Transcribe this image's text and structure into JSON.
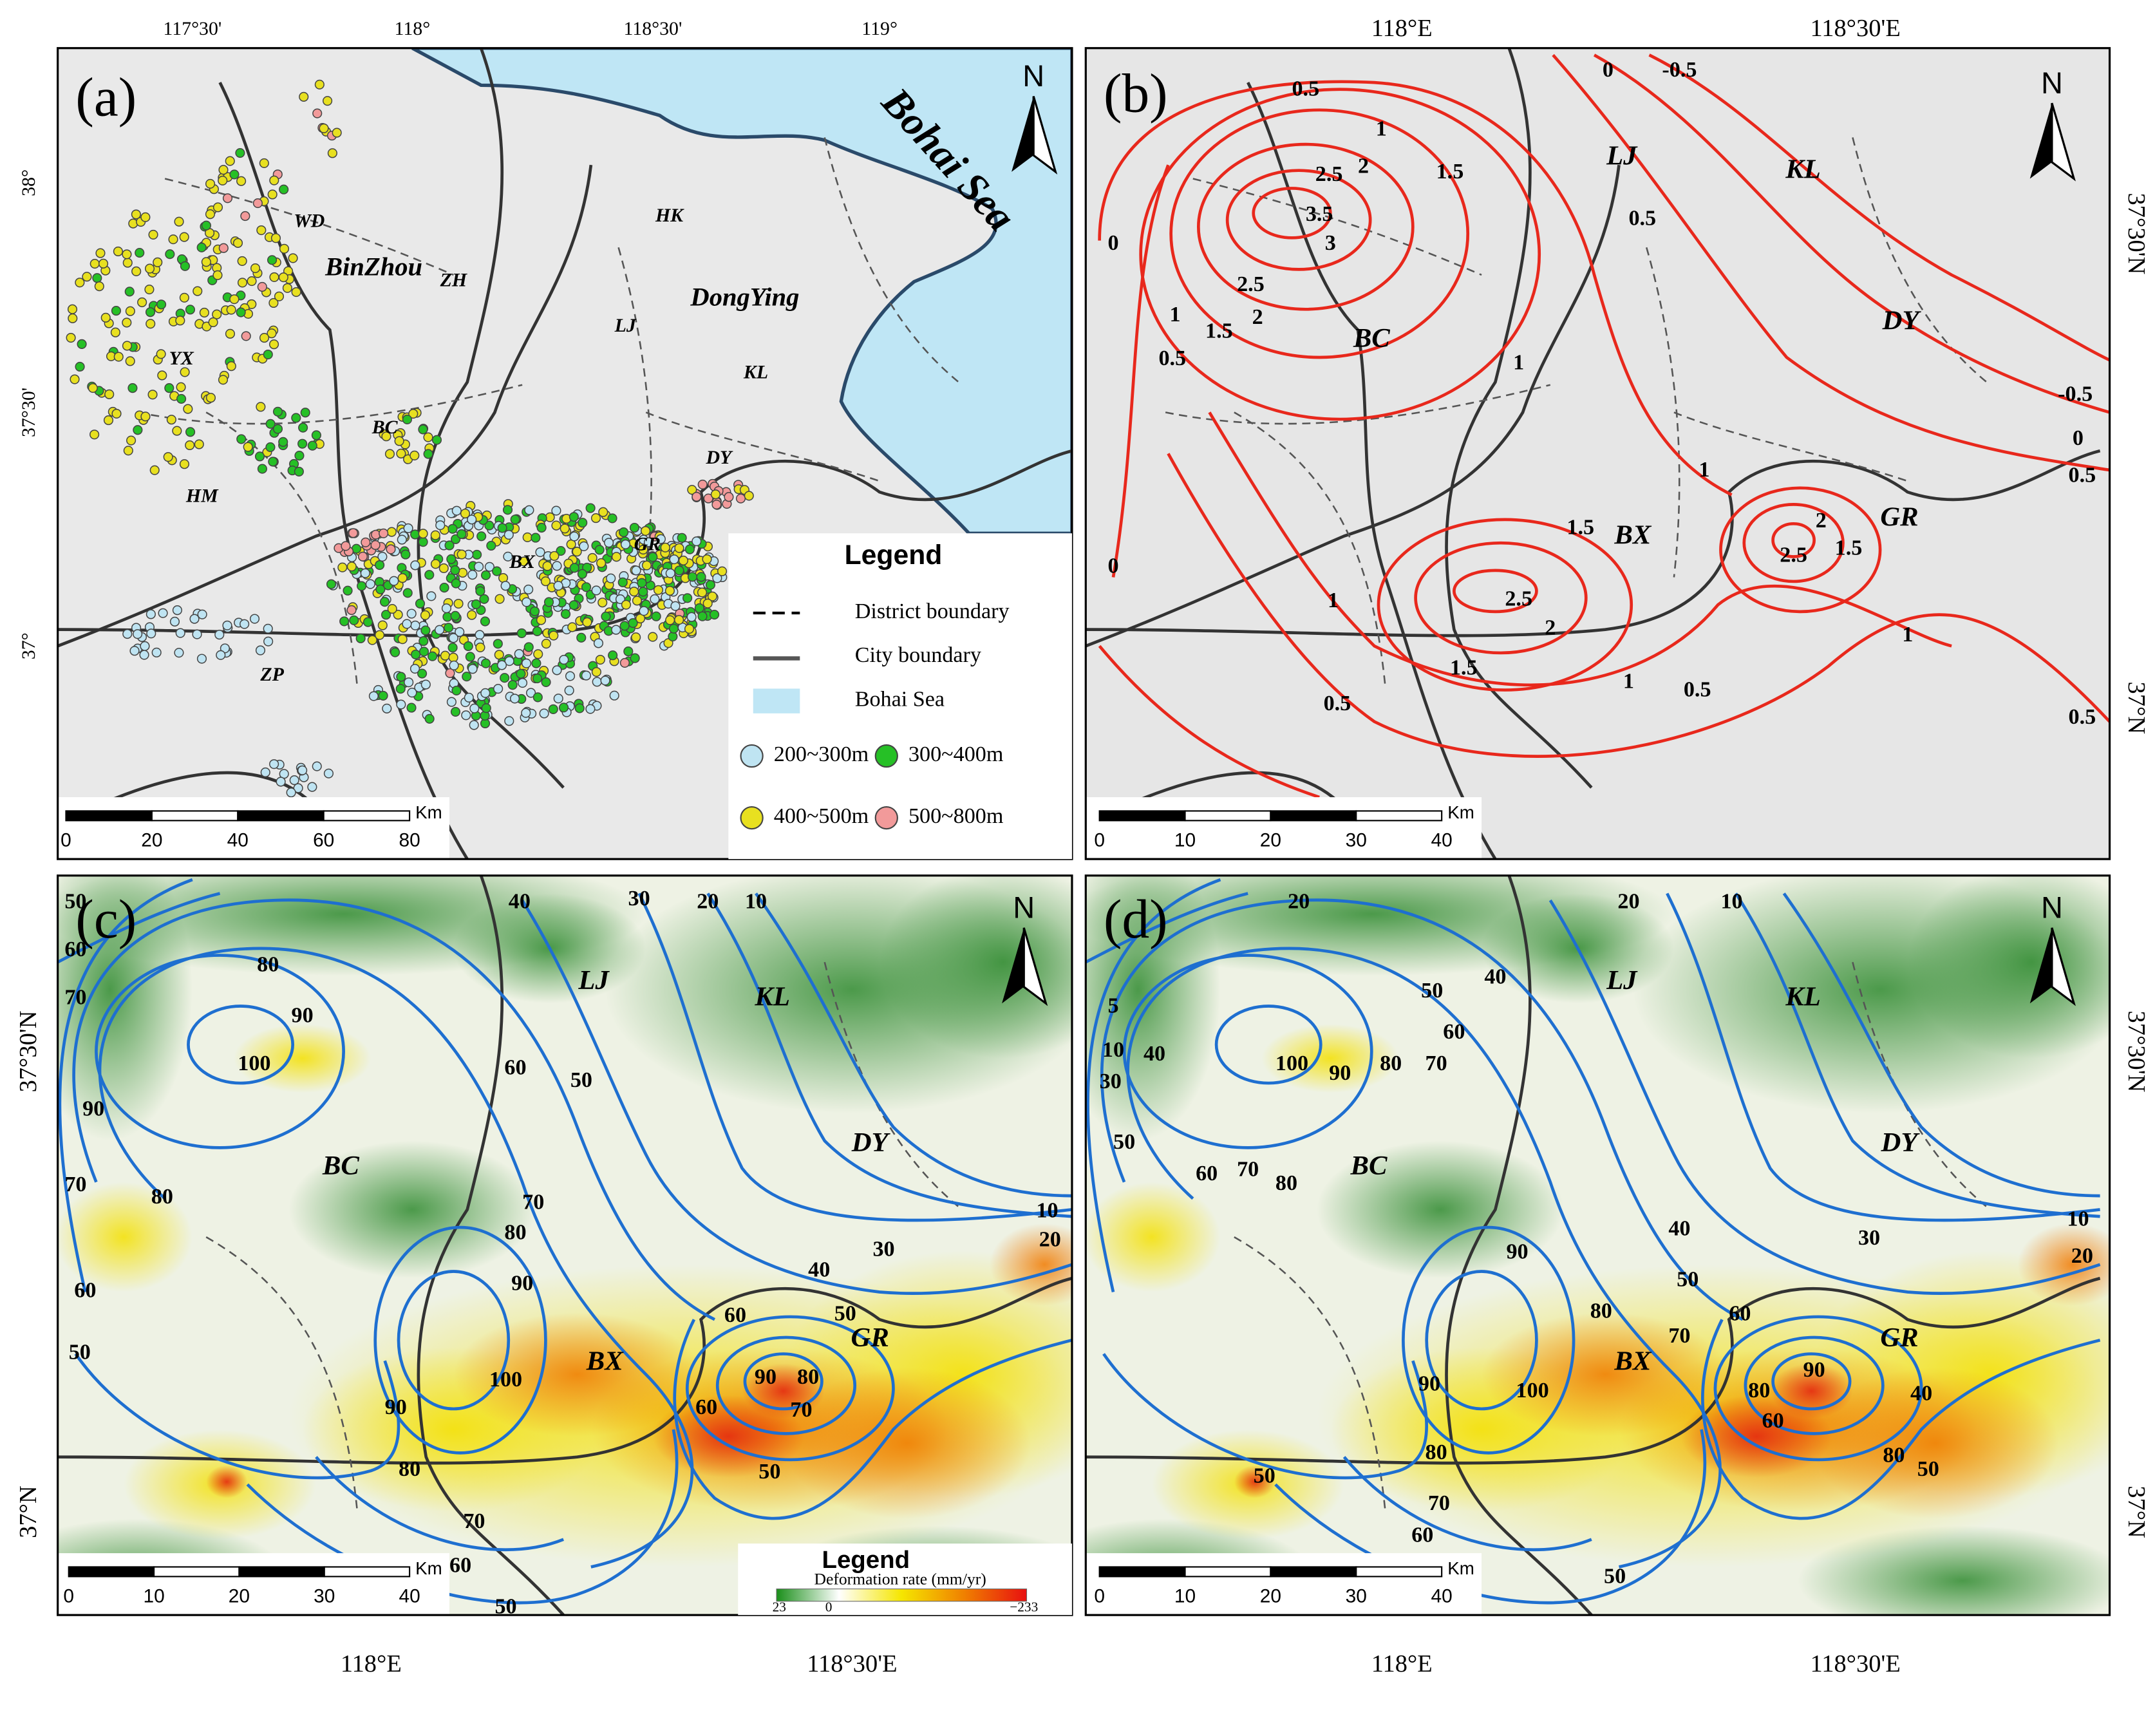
{
  "panels": [
    {
      "label": "(a)",
      "top_ticks": [
        "117°30'",
        "118°",
        "118°30'",
        "119°"
      ],
      "left_ticks": [
        "38°",
        "37°30'",
        "37°"
      ],
      "sea_label": "Bohai Sea",
      "places": [
        "WD",
        "BinZhou",
        "ZH",
        "YX",
        "BC",
        "HM",
        "ZP",
        "HK",
        "DongYing",
        "LJ",
        "KL",
        "DY",
        "BX",
        "GR"
      ],
      "legend": {
        "title": "Legend",
        "items": [
          "District boundary",
          "City boundary",
          "Bohai Sea"
        ],
        "depth_classes": [
          "200~300m",
          "300~400m",
          "400~500m",
          "500~800m"
        ]
      },
      "scale": {
        "unit": "Km",
        "ticks": [
          0,
          20,
          40,
          60,
          80
        ]
      },
      "north": "N"
    },
    {
      "label": "(b)",
      "top_ticks": [
        "118°E",
        "118°30'E"
      ],
      "right_ticks": [
        "37°30'N",
        "37°N"
      ],
      "places": [
        "LJ",
        "KL",
        "BC",
        "DY",
        "BX",
        "GR"
      ],
      "contour_labels": [
        0.5,
        1,
        0,
        -0.5,
        2.5,
        2,
        1.5,
        3.5,
        3,
        0,
        2.5,
        1.5,
        2,
        1,
        0.5,
        0.5,
        1,
        -0.5,
        0,
        0.5,
        1,
        1.5,
        2,
        2.5,
        1.5,
        2.5,
        2,
        1,
        1.5,
        1,
        0.5,
        1,
        0.5,
        0,
        0.5
      ],
      "scale": {
        "unit": "Km",
        "ticks": [
          0,
          10,
          20,
          30,
          40
        ]
      },
      "north": "N"
    },
    {
      "label": "(c)",
      "bottom_ticks": [
        "118°E",
        "118°30'E"
      ],
      "left_ticks": [
        "37°30'N",
        "37°N"
      ],
      "places": [
        "LJ",
        "KL",
        "BC",
        "DY",
        "BX",
        "GR"
      ],
      "contour_labels": [
        50,
        60,
        70,
        40,
        30,
        20,
        10,
        80,
        90,
        100,
        90,
        70,
        80,
        60,
        50,
        60,
        50,
        70,
        80,
        90,
        100,
        90,
        80,
        70,
        60,
        50,
        10,
        20,
        30,
        40,
        60,
        50,
        90,
        80,
        70,
        60,
        50
      ],
      "legend": {
        "title": "Legend",
        "subtitle": "Deformation rate (mm/yr)",
        "min": "23",
        "zero": "0",
        "max": "−233"
      },
      "scale": {
        "unit": "Km",
        "ticks": [
          0,
          10,
          20,
          30,
          40
        ]
      },
      "north": "N"
    },
    {
      "label": "(d)",
      "bottom_ticks": [
        "118°E",
        "118°30'E"
      ],
      "right_ticks": [
        "37°30'N",
        "37°N"
      ],
      "places": [
        "LJ",
        "KL",
        "BC",
        "DY",
        "BX",
        "GR"
      ],
      "contour_labels": [
        20,
        20,
        10,
        5,
        10,
        40,
        30,
        50,
        40,
        50,
        60,
        70,
        80,
        100,
        90,
        60,
        70,
        80,
        10,
        20,
        30,
        40,
        50,
        60,
        70,
        90,
        80,
        90,
        100,
        80,
        70,
        60,
        50,
        80,
        90,
        60,
        40,
        80,
        50,
        50
      ],
      "scale": {
        "unit": "Km",
        "ticks": [
          0,
          10,
          20,
          30,
          40
        ]
      },
      "north": "N"
    }
  ]
}
